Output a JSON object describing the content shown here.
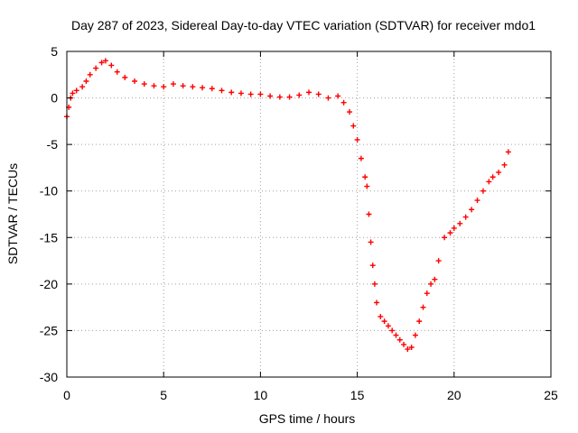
{
  "chart_data": {
    "type": "scatter",
    "title": "Day 287 of 2023, Sidereal Day-to-day VTEC variation (SDTVAR) for receiver mdo1",
    "xlabel": "GPS time / hours",
    "ylabel": "SDTVAR / TECUs",
    "xlim": [
      0,
      25
    ],
    "ylim": [
      -30,
      5
    ],
    "x_ticks": [
      0,
      5,
      10,
      15,
      20,
      25
    ],
    "y_ticks": [
      5,
      0,
      -5,
      -10,
      -15,
      -20,
      -25,
      -30
    ],
    "x_tick_labels": [
      "0",
      "5",
      "10",
      "15",
      "20",
      "25"
    ],
    "y_tick_labels": [
      "5",
      "0",
      "-5",
      "-10",
      "-15",
      "-20",
      "-25",
      "-30"
    ],
    "grid": true,
    "marker": "plus",
    "color": "#ff0000",
    "series": [
      {
        "name": "SDTVAR",
        "x": [
          0.0,
          0.1,
          0.2,
          0.3,
          0.5,
          0.8,
          1.0,
          1.2,
          1.5,
          1.8,
          2.0,
          2.3,
          2.6,
          3.0,
          3.5,
          4.0,
          4.5,
          5.0,
          5.5,
          6.0,
          6.5,
          7.0,
          7.5,
          8.0,
          8.5,
          9.0,
          9.5,
          10.0,
          10.5,
          11.0,
          11.5,
          12.0,
          12.5,
          13.0,
          13.5,
          14.0,
          14.3,
          14.6,
          14.8,
          15.0,
          15.2,
          15.4,
          15.5,
          15.6,
          15.7,
          15.8,
          15.9,
          16.0,
          16.2,
          16.4,
          16.6,
          16.8,
          17.0,
          17.2,
          17.4,
          17.6,
          17.8,
          18.0,
          18.2,
          18.4,
          18.6,
          18.8,
          19.0,
          19.2,
          19.5,
          19.8,
          20.0,
          20.3,
          20.6,
          20.9,
          21.2,
          21.5,
          21.8,
          22.0,
          22.3,
          22.6,
          22.8
        ],
        "y": [
          -2.0,
          -1.0,
          0.0,
          0.5,
          0.8,
          1.2,
          1.8,
          2.5,
          3.2,
          3.8,
          4.0,
          3.5,
          2.8,
          2.2,
          1.8,
          1.5,
          1.3,
          1.2,
          1.5,
          1.3,
          1.2,
          1.1,
          1.0,
          0.8,
          0.6,
          0.5,
          0.4,
          0.4,
          0.2,
          0.1,
          0.1,
          0.3,
          0.6,
          0.4,
          0.0,
          0.2,
          -0.5,
          -1.5,
          -3.0,
          -4.5,
          -6.5,
          -8.5,
          -9.5,
          -12.5,
          -15.5,
          -18.0,
          -20.0,
          -22.0,
          -23.5,
          -24.0,
          -24.5,
          -25.0,
          -25.5,
          -26.0,
          -26.5,
          -27.0,
          -26.8,
          -25.5,
          -24.0,
          -22.5,
          -21.0,
          -20.0,
          -19.5,
          -17.5,
          -15.0,
          -14.5,
          -14.0,
          -13.5,
          -12.8,
          -12.0,
          -11.0,
          -10.0,
          -9.0,
          -8.5,
          -8.0,
          -7.2,
          -5.8
        ]
      }
    ]
  }
}
